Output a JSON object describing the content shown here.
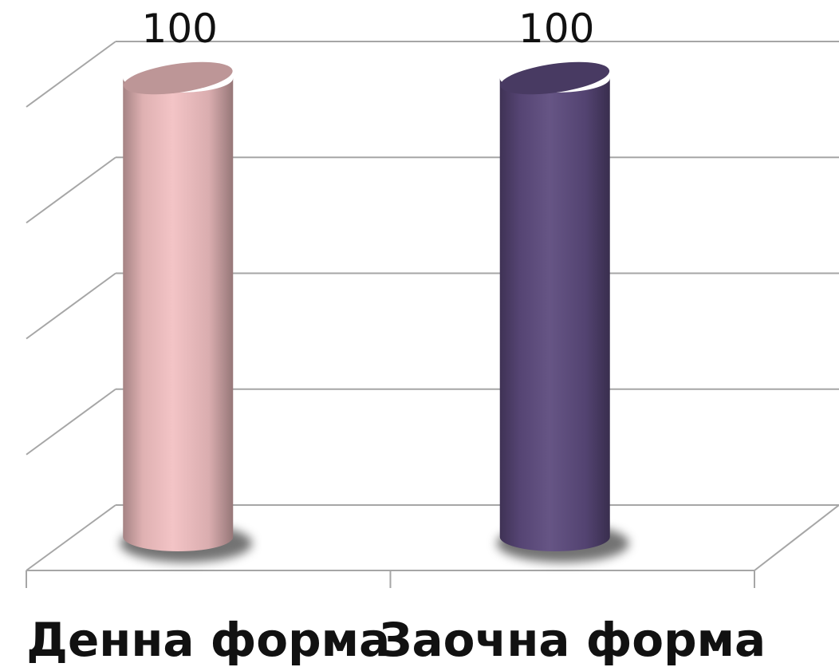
{
  "chart_data": {
    "type": "bar",
    "style": "3d-cylinder",
    "categories": [
      "Денна форма",
      "Заочна форма"
    ],
    "values": [
      100,
      100
    ],
    "data_labels": [
      "100",
      "100"
    ],
    "colors": [
      "#f2c0c2",
      "#5c4a7d"
    ],
    "ylim": [
      0,
      100
    ],
    "grid": true,
    "legend": "none"
  }
}
